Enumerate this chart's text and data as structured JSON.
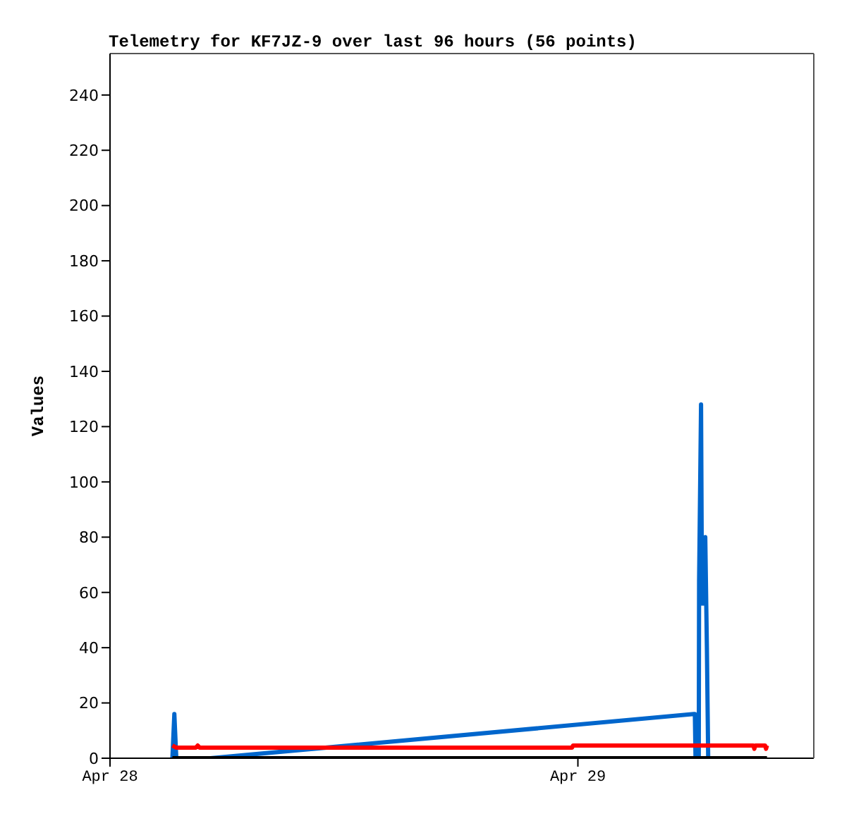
{
  "chart_data": {
    "type": "line",
    "title": "Telemetry for KF7JZ-9 over last 96 hours (56 points)",
    "ylabel": "Values",
    "xlim": [
      "--04-28T00:00",
      "--04-29T12:06"
    ],
    "xticks": [
      {
        "value": "--04-28",
        "label": "Apr 28"
      },
      {
        "value": "--04-29",
        "label": "Apr 29"
      }
    ],
    "ylim": [
      0,
      255
    ],
    "yticks": [
      0,
      20,
      40,
      60,
      80,
      100,
      120,
      140,
      160,
      180,
      200,
      220,
      240
    ],
    "grid": false,
    "legend": false,
    "marker": "none",
    "line_style": "solid",
    "series": [
      {
        "color": "#0066cc",
        "x": [
          "--04-28T03:12",
          "--04-28T03:15",
          "--04-28T03:18",
          "--04-28T03:24",
          "--04-28T05:09",
          "--04-29T05:57",
          "--04-29T06:00",
          "--04-29T06:02",
          "--04-29T06:12",
          "--04-29T06:13",
          "--04-29T06:19",
          "--04-29T06:22",
          "--04-29T06:27",
          "--04-29T06:32",
          "--04-29T06:37",
          "--04-29T06:41"
        ],
        "values": [
          0,
          8,
          16,
          0,
          0,
          16,
          16,
          0,
          0,
          64,
          128,
          56,
          56,
          80,
          40,
          0
        ]
      },
      {
        "color": "#ff0000",
        "x": [
          "--04-28T03:12",
          "--04-28T03:24",
          "--04-28T04:24",
          "--04-28T04:30",
          "--04-28T04:36",
          "--04-28T23:42",
          "--04-28T23:45",
          "--04-29T09:00",
          "--04-29T09:03",
          "--04-29T09:06",
          "--04-29T09:36",
          "--04-29T09:39",
          "--04-29T09:42"
        ],
        "values": [
          4.6,
          3.8,
          3.8,
          4.6,
          3.8,
          3.8,
          4.6,
          4.6,
          3.4,
          4.6,
          4.6,
          3.4,
          4.6
        ]
      },
      {
        "color": "#000000",
        "x": [
          "--04-28T03:12",
          "--04-29T09:42"
        ],
        "values": [
          0,
          0
        ]
      }
    ]
  }
}
